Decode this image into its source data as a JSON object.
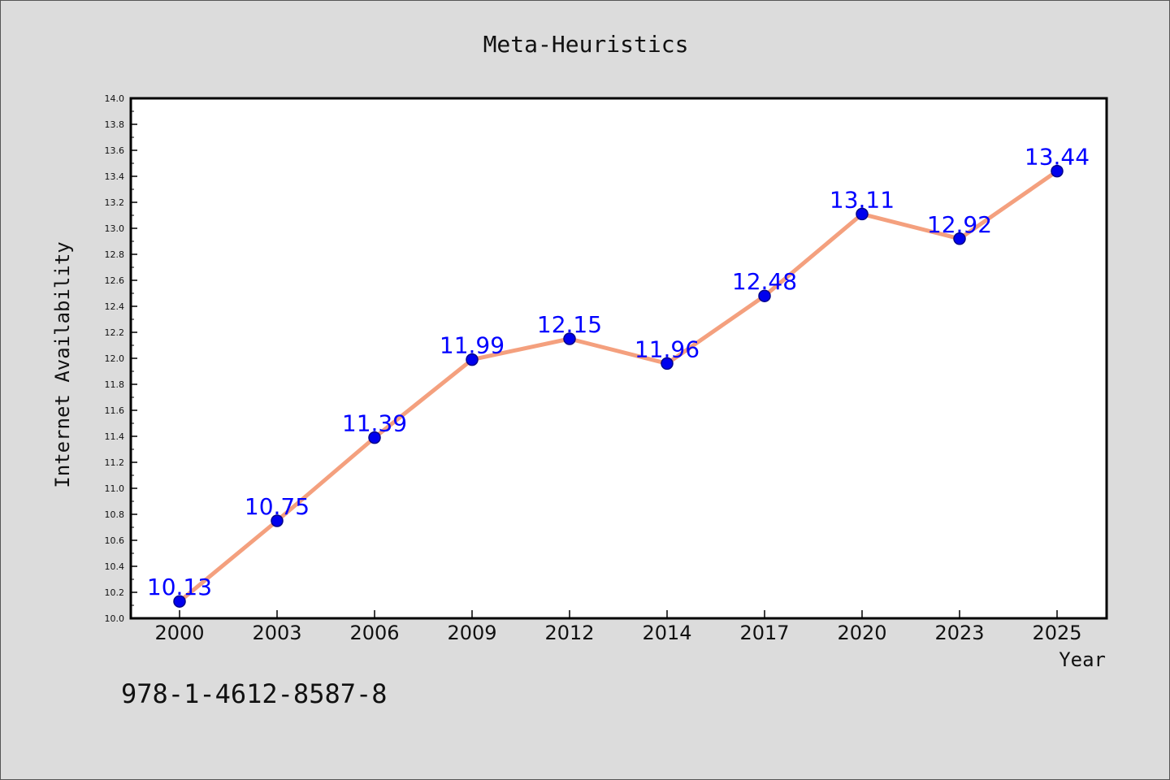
{
  "chart_data": {
    "type": "line",
    "title": "Meta-Heuristics",
    "xlabel": "Year",
    "ylabel": "Internet Availability",
    "categories": [
      "2000",
      "2003",
      "2006",
      "2009",
      "2012",
      "2014",
      "2017",
      "2020",
      "2023",
      "2025"
    ],
    "series": [
      {
        "values": [
          10.13,
          10.75,
          11.39,
          11.99,
          12.15,
          11.96,
          12.48,
          13.11,
          12.92,
          13.44
        ]
      }
    ],
    "data_labels": [
      "10.13",
      "10.75",
      "11.39",
      "11.99",
      "12.15",
      "11.96",
      "12.48",
      "13.11",
      "12.92",
      "13.44"
    ],
    "ylim": [
      10.0,
      14.0
    ],
    "yticks": [
      "10.0",
      "10.2",
      "10.4",
      "10.6",
      "10.8",
      "11.0",
      "11.2",
      "11.4",
      "11.6",
      "11.8",
      "12.0",
      "12.2",
      "12.4",
      "12.6",
      "12.8",
      "13.0",
      "13.2",
      "13.4",
      "13.6",
      "13.8",
      "14.0"
    ],
    "grid": false,
    "legend": "none",
    "colors": {
      "line": "#f4a07e",
      "marker_fill": "#0000ee",
      "marker_edge": "#00008b",
      "data_label": "#0000ff",
      "background": "#dcdcdc",
      "plot_area": "#ffffff"
    }
  },
  "footer": {
    "text": "978-1-4612-8587-8"
  }
}
